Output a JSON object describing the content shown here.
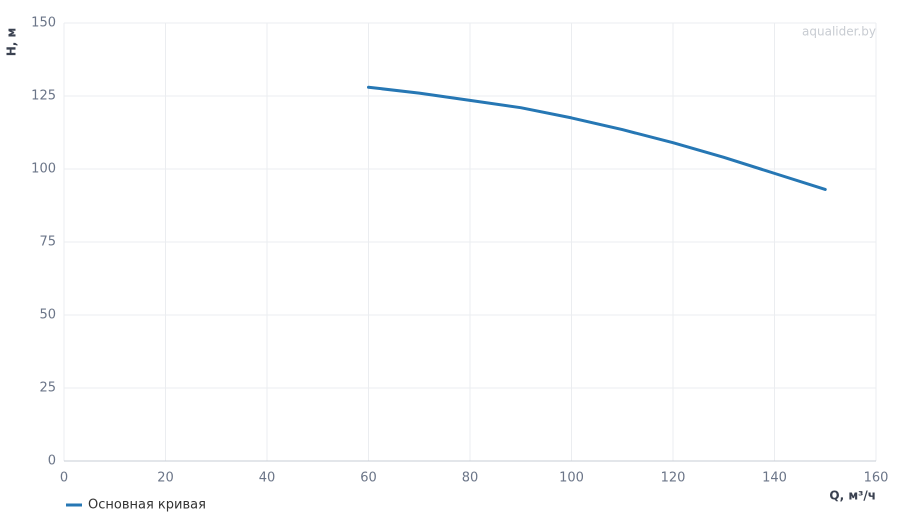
{
  "chart_data": {
    "type": "line",
    "watermark": "aqualider.by",
    "x_label": "Q, м³/ч",
    "y_label": "H, м",
    "x": [
      60,
      70,
      80,
      90,
      100,
      110,
      120,
      130,
      140,
      150
    ],
    "series": [
      {
        "name": "Основная кривая",
        "color": "#2677b4",
        "values": [
          128,
          126,
          123.5,
          121,
          117.5,
          113.5,
          109,
          104,
          98.5,
          93
        ]
      }
    ],
    "xlim": [
      0,
      160
    ],
    "xticks": [
      0,
      20,
      40,
      60,
      80,
      100,
      120,
      140,
      160
    ],
    "ylim": [
      0,
      150
    ],
    "yticks": [
      0,
      25,
      50,
      75,
      100,
      125,
      150
    ],
    "grid": true
  }
}
